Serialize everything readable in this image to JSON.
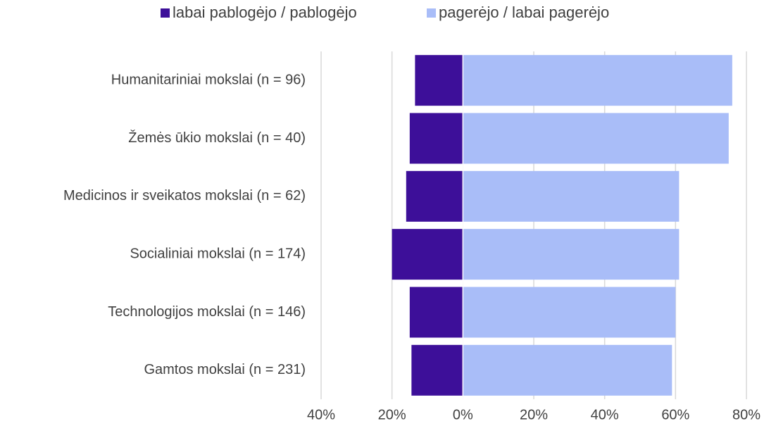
{
  "chart_data": {
    "type": "bar",
    "orientation": "horizontal",
    "stacked": true,
    "categories": [
      "Humanitariniai mokslai (n = 96)",
      "Žemės ūkio mokslai (n = 40)",
      "Medicinos ir sveikatos mokslai (n = 62)",
      "Socialiniai mokslai (n = 174)",
      "Technologijos mokslai (n = 146)",
      "Gamtos mokslai (n = 231)"
    ],
    "series": [
      {
        "name": "labai pablogėjo / pablogėjo",
        "color": "#3d0f99",
        "values": [
          -13.5,
          -15,
          -16,
          -20,
          -15,
          -14.5
        ]
      },
      {
        "name": "pagerėjo / labai pagerėjo",
        "color": "#a9bdf8",
        "values": [
          76,
          75,
          61,
          61,
          60,
          59
        ]
      }
    ],
    "xlim": [
      -40,
      80
    ],
    "xticks": [
      {
        "value": -40,
        "label": "40%"
      },
      {
        "value": -20,
        "label": "20%"
      },
      {
        "value": 0,
        "label": "0%"
      },
      {
        "value": 20,
        "label": "20%"
      },
      {
        "value": 40,
        "label": "40%"
      },
      {
        "value": 60,
        "label": "60%"
      },
      {
        "value": 80,
        "label": "80%"
      }
    ],
    "grid": true,
    "legend": "top"
  }
}
